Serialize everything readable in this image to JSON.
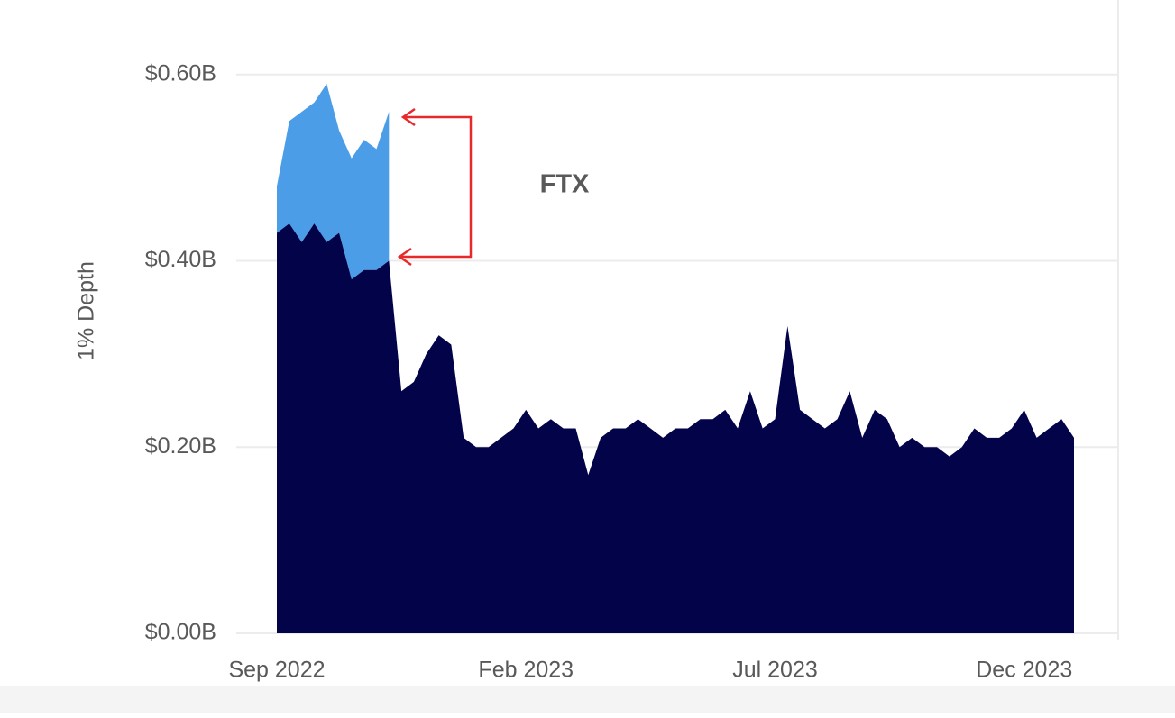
{
  "chart_data": {
    "type": "area",
    "stacked": true,
    "y_label": "1% Depth",
    "annotation": "FTX",
    "categories": [
      "Sep 2022",
      null,
      null,
      null,
      null,
      null,
      null,
      null,
      null,
      null,
      null,
      null,
      null,
      null,
      null,
      null,
      null,
      null,
      null,
      null,
      "Feb 2023",
      null,
      null,
      null,
      null,
      null,
      null,
      null,
      null,
      null,
      null,
      null,
      null,
      null,
      null,
      null,
      null,
      null,
      null,
      null,
      "Jul 2023",
      null,
      null,
      null,
      null,
      null,
      null,
      null,
      null,
      null,
      null,
      null,
      null,
      null,
      null,
      null,
      null,
      null,
      null,
      null,
      "Dec 2023",
      null,
      null,
      null,
      null
    ],
    "series": [
      {
        "color": "#03034a",
        "values": [
          0.43,
          0.44,
          0.42,
          0.44,
          0.42,
          0.43,
          0.38,
          0.39,
          0.39,
          0.4,
          0.26,
          0.27,
          0.3,
          0.32,
          0.31,
          0.21,
          0.2,
          0.2,
          0.21,
          0.22,
          0.24,
          0.22,
          0.23,
          0.22,
          0.22,
          0.17,
          0.21,
          0.22,
          0.22,
          0.23,
          0.22,
          0.21,
          0.22,
          0.22,
          0.23,
          0.23,
          0.24,
          0.22,
          0.26,
          0.22,
          0.23,
          0.33,
          0.24,
          0.23,
          0.22,
          0.23,
          0.26,
          0.21,
          0.24,
          0.23,
          0.2,
          0.21,
          0.2,
          0.2,
          0.19,
          0.2,
          0.22,
          0.21,
          0.21,
          0.22,
          0.24,
          0.21,
          0.22,
          0.23,
          0.21
        ]
      },
      {
        "color": "#4c9de8",
        "values": [
          0.05,
          0.11,
          0.14,
          0.13,
          0.17,
          0.11,
          0.13,
          0.14,
          0.13,
          0.16,
          null,
          null,
          null,
          null,
          null,
          null,
          null,
          null,
          null,
          null,
          null,
          null,
          null,
          null,
          null,
          null,
          null,
          null,
          null,
          null,
          null,
          null,
          null,
          null,
          null,
          null,
          null,
          null,
          null,
          null,
          null,
          null,
          null,
          null,
          null,
          null,
          null,
          null,
          null,
          null,
          null,
          null,
          null,
          null,
          null,
          null,
          null,
          null,
          null,
          null,
          null,
          null,
          null,
          null,
          null
        ]
      }
    ],
    "ylim": [
      0,
      0.68
    ],
    "yticks": [
      {
        "value": 0,
        "label": "$0.00B"
      },
      {
        "value": 0.2,
        "label": "$0.20B"
      },
      {
        "value": 0.4,
        "label": "$0.40B"
      },
      {
        "value": 0.6,
        "label": "$0.60B"
      }
    ],
    "grid": true
  }
}
